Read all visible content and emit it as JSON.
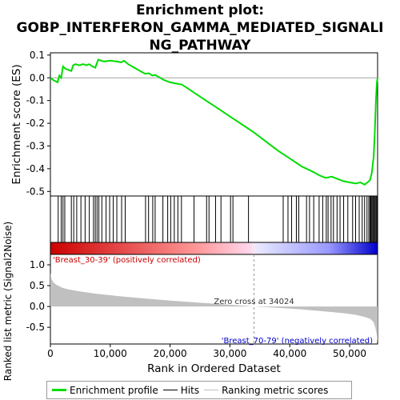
{
  "title_lines": [
    "Enrichment plot:",
    "GOBP_INTERFERON_GAMMA_MEDIATED_SIGNALI",
    "NG_PATHWAY"
  ],
  "legend": {
    "items": [
      {
        "label": "Enrichment profile",
        "color": "#00dd00"
      },
      {
        "label": "Hits",
        "color": "#000000"
      },
      {
        "label": "Ranking metric scores",
        "color": "#c0c0c0"
      }
    ]
  },
  "chart_data": [
    {
      "type": "line",
      "panel": "enrichment",
      "ylabel": "Enrichment score (ES)",
      "ylim": [
        -0.52,
        0.11
      ],
      "y_ticks": [
        0.1,
        0.0,
        -0.1,
        -0.2,
        -0.3,
        -0.4,
        -0.5
      ],
      "y_tick_labels": [
        "0.1",
        "0.0",
        "-0.1",
        "-0.2",
        "-0.3",
        "-0.4",
        "-0.5"
      ],
      "xlim": [
        0,
        54675
      ],
      "grid": false,
      "series": [
        {
          "color": "#00dd00",
          "x": [
            0,
            500,
            1200,
            1500,
            1800,
            2100,
            2500,
            3000,
            3500,
            3800,
            4200,
            4800,
            5500,
            6000,
            6500,
            7000,
            7500,
            8000,
            8500,
            9000,
            10000,
            11000,
            11800,
            12300,
            13000,
            14000,
            15000,
            15800,
            16500,
            17000,
            17500,
            18000,
            19000,
            20000,
            21000,
            22000,
            24000,
            26000,
            28000,
            30000,
            32000,
            34000,
            36000,
            38000,
            40000,
            42000,
            44000,
            45000,
            46000,
            47000,
            48000,
            49000,
            50000,
            51000,
            51800,
            52500,
            53000,
            53400,
            53700,
            54000,
            54200,
            54400,
            54550,
            54675
          ],
          "y": [
            0.0,
            -0.01,
            -0.02,
            0.01,
            0.0,
            0.05,
            0.04,
            0.035,
            0.03,
            0.055,
            0.06,
            0.055,
            0.06,
            0.055,
            0.06,
            0.05,
            0.045,
            0.08,
            0.075,
            0.072,
            0.075,
            0.072,
            0.068,
            0.075,
            0.06,
            0.045,
            0.03,
            0.018,
            0.02,
            0.01,
            0.012,
            0.005,
            -0.01,
            -0.02,
            -0.025,
            -0.03,
            -0.065,
            -0.1,
            -0.135,
            -0.17,
            -0.205,
            -0.24,
            -0.28,
            -0.32,
            -0.355,
            -0.39,
            -0.415,
            -0.43,
            -0.44,
            -0.435,
            -0.445,
            -0.455,
            -0.46,
            -0.465,
            -0.46,
            -0.47,
            -0.46,
            -0.45,
            -0.42,
            -0.35,
            -0.25,
            -0.1,
            -0.02,
            0.0
          ]
        }
      ]
    },
    {
      "type": "scatter",
      "panel": "hits",
      "hits_x": [
        1300,
        1800,
        2100,
        2400,
        3500,
        3900,
        4400,
        5100,
        5800,
        6500,
        7200,
        7500,
        7800,
        8100,
        8600,
        9300,
        9900,
        10500,
        11100,
        11900,
        12500,
        15900,
        16400,
        17100,
        17500,
        18800,
        19600,
        20100,
        20700,
        21300,
        21900,
        24000,
        26100,
        26500,
        27600,
        28500,
        30100,
        30500,
        33100,
        38900,
        39700,
        40300,
        41100,
        41500,
        42800,
        43300,
        44000,
        44900,
        45500,
        46100,
        46400,
        46900,
        47300,
        47900,
        48400,
        49000,
        49700,
        50500,
        51000,
        51600,
        52100,
        52500,
        52900,
        53200,
        53400,
        53550,
        53700,
        53850,
        54000,
        54150,
        54300,
        54450,
        54600
      ]
    },
    {
      "type": "area",
      "panel": "ranking_metric",
      "ylabel": "Ranked list metric (Signal2Noise)",
      "xlabel": "Rank in Ordered Dataset",
      "ylim": [
        -0.9,
        1.25
      ],
      "y_ticks": [
        1.0,
        0.5,
        0.0,
        -0.5
      ],
      "y_tick_labels": [
        "1.0",
        "0.5",
        "0.0",
        "-0.5"
      ],
      "xlim": [
        0,
        54675
      ],
      "x_ticks": [
        0,
        10000,
        20000,
        30000,
        40000,
        50000
      ],
      "x_tick_labels": [
        "0",
        "10,000",
        "20,000",
        "30,000",
        "40,000",
        "50,000"
      ],
      "color": "#c0c0c0",
      "x": [
        0,
        200,
        500,
        1000,
        2000,
        3000,
        5000,
        8000,
        12000,
        16000,
        20000,
        25000,
        30000,
        34024,
        38000,
        42000,
        46000,
        49000,
        51000,
        52500,
        53500,
        54000,
        54300,
        54500,
        54675
      ],
      "y": [
        0.8,
        0.65,
        0.58,
        0.52,
        0.45,
        0.41,
        0.36,
        0.3,
        0.24,
        0.19,
        0.14,
        0.09,
        0.04,
        0.0,
        -0.03,
        -0.07,
        -0.12,
        -0.16,
        -0.2,
        -0.25,
        -0.3,
        -0.38,
        -0.5,
        -0.65,
        -0.85
      ],
      "annotations": {
        "zero_cross": "Zero cross at 34024",
        "zero_cross_x": 34024,
        "positive_label": "'Breast_30-39' (positively correlated)",
        "negative_label": "'Breast_70-79' (negatively correlated)",
        "positive_color": "#cc0000",
        "negative_color": "#0000cc"
      }
    }
  ]
}
